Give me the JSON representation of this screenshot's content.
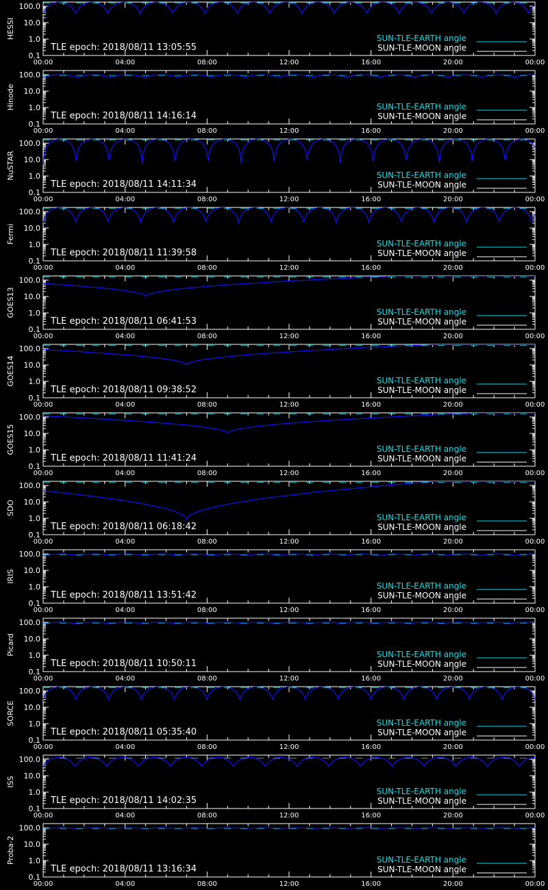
{
  "colors": {
    "background": "#000000",
    "axes": "#ffffff",
    "earth": "#00e5ee",
    "moon": "#ffffff",
    "curve": "#1010ff"
  },
  "legend": {
    "earth_label": "SUN-TLE-EARTH angle",
    "moon_label": "SUN-TLE-MOON angle"
  },
  "epoch_prefix": "TLE epoch: ",
  "axes": {
    "x_ticks": [
      "00:00",
      "04:00",
      "08:00",
      "12:00",
      "16:00",
      "20:00",
      "00:00"
    ],
    "y_ticks": [
      "0.1",
      "1.0",
      "10.0",
      "100.0"
    ],
    "y_scale": "log",
    "ylim": [
      0.1,
      180
    ]
  },
  "chart_data": [
    {
      "type": "line",
      "satellite": "HESSI",
      "epoch": "2018/08/11 13:05:55",
      "orbits_per_day": 15.2,
      "min_angle": 35,
      "max_angle": 175
    },
    {
      "type": "line",
      "satellite": "Hinode",
      "epoch": "2018/08/11 14:16:14",
      "orbits_per_day": 14.6,
      "min_angle": 70,
      "max_angle": 100
    },
    {
      "type": "line",
      "satellite": "NuSTAR",
      "epoch": "2018/08/11 14:11:34",
      "orbits_per_day": 14.9,
      "min_angle": 5,
      "max_angle": 175
    },
    {
      "type": "line",
      "satellite": "Fermi",
      "epoch": "2018/08/11 11:39:58",
      "orbits_per_day": 15.1,
      "min_angle": 20,
      "max_angle": 175
    },
    {
      "type": "line",
      "satellite": "GOES13",
      "epoch": "2018/08/11 06:41:53",
      "min_angle": 10,
      "min_time_h": 5.0,
      "max_angle": 170
    },
    {
      "type": "line",
      "satellite": "GOES14",
      "epoch": "2018/08/11 09:38:52",
      "min_angle": 10,
      "min_time_h": 7.0,
      "max_angle": 170
    },
    {
      "type": "line",
      "satellite": "GOES15",
      "epoch": "2018/08/11 11:41:24",
      "min_angle": 10,
      "min_time_h": 9.0,
      "max_angle": 170
    },
    {
      "type": "line",
      "satellite": "SDO",
      "epoch": "2018/08/11 06:18:42",
      "min_angle": 0.8,
      "min_time_h": 7.0,
      "max_angle": 170
    },
    {
      "type": "line",
      "satellite": "IRIS",
      "epoch": "2018/08/11 13:51:42",
      "orbits_per_day": 14.6,
      "min_angle": 80,
      "max_angle": 100
    },
    {
      "type": "line",
      "satellite": "Picard",
      "epoch": "2018/08/11 10:50:11",
      "orbits_per_day": 14.8,
      "min_angle": 85,
      "max_angle": 100
    },
    {
      "type": "line",
      "satellite": "SORCE",
      "epoch": "2018/08/11 05:35:40",
      "orbits_per_day": 15.0,
      "min_angle": 30,
      "max_angle": 175
    },
    {
      "type": "line",
      "satellite": "ISS",
      "epoch": "2018/08/11 14:02:35",
      "orbits_per_day": 15.5,
      "min_angle": 35,
      "max_angle": 130
    },
    {
      "type": "line",
      "satellite": "Proba-2",
      "epoch": "2018/08/11 13:16:34",
      "orbits_per_day": 14.5,
      "min_angle": 90,
      "max_angle": 100
    }
  ]
}
